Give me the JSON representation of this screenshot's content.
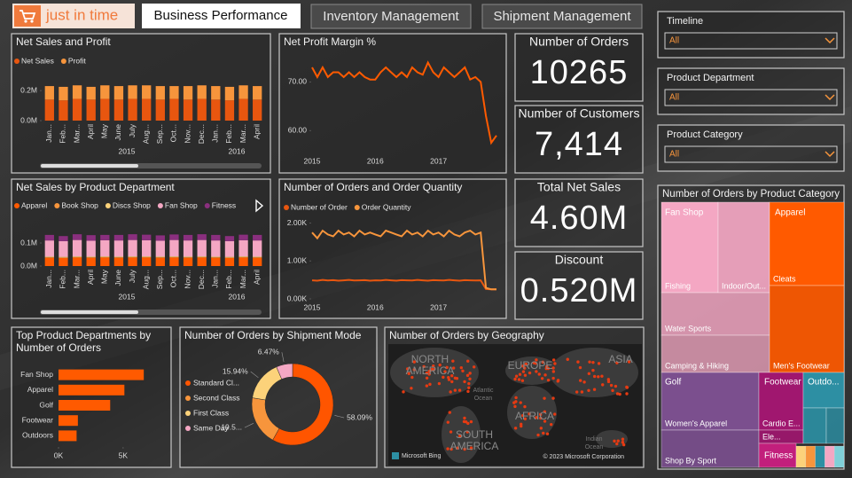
{
  "header": {
    "logo": "just in time",
    "tabs": [
      "Business Performance",
      "Inventory Management",
      "Shipment Management"
    ]
  },
  "filters": [
    {
      "title": "Timeline",
      "value": "All"
    },
    {
      "title": "Product Department",
      "value": "All"
    },
    {
      "title": "Product Category",
      "value": "All"
    }
  ],
  "cards": [
    {
      "title": "Number of Orders",
      "value": 10265
    },
    {
      "title": "Number of Customers",
      "value": 7414,
      "value_label": "7,414"
    },
    {
      "title": "Total Net Sales",
      "value": 4600000,
      "value_label": "4.60M"
    },
    {
      "title": "Discount",
      "value": 520000,
      "value_label": "0.520M"
    }
  ],
  "map": {
    "title": "Number of Orders by Geography",
    "labels": [
      "NORTH AMERICA",
      "EUROPE",
      "ASIA",
      "AFRICA",
      "SOUTH AMERICA"
    ],
    "minor_labels": [
      "Atlantic Ocean",
      "Indian Ocean"
    ],
    "logo": "Microsoft Bing",
    "copyright": "© 2023 Microsoft Corporation"
  },
  "chart_data": [
    {
      "type": "stacked_bar",
      "title": "Net Sales and Profit",
      "categories": [
        "Jan...",
        "Feb...",
        "Mar...",
        "April",
        "May",
        "June",
        "July",
        "Aug...",
        "Sep...",
        "Oct...",
        "Nov...",
        "Dec...",
        "Jan...",
        "Feb...",
        "Mar...",
        "April"
      ],
      "year_labels": [
        "2015",
        "2016"
      ],
      "series": [
        {
          "name": "Net Sales",
          "color": "#e8560f",
          "values": [
            0.14,
            0.135,
            0.145,
            0.14,
            0.145,
            0.14,
            0.145,
            0.145,
            0.14,
            0.145,
            0.14,
            0.145,
            0.14,
            0.135,
            0.145,
            0.14
          ]
        },
        {
          "name": "Profit",
          "color": "#f7953c",
          "values": [
            0.09,
            0.09,
            0.09,
            0.085,
            0.09,
            0.09,
            0.09,
            0.09,
            0.09,
            0.085,
            0.09,
            0.09,
            0.09,
            0.09,
            0.09,
            0.09
          ]
        }
      ],
      "ylim": [
        0,
        0.26
      ],
      "yticks": [
        {
          "value": 0,
          "label": "0.0M"
        },
        {
          "value": 0.2,
          "label": "0.2M"
        }
      ]
    },
    {
      "type": "line",
      "title": "Net Profit Margin %",
      "categories": [
        "2015",
        null,
        null,
        null,
        null,
        null,
        null,
        null,
        null,
        null,
        null,
        null,
        "2016",
        null,
        null,
        null,
        null,
        null,
        null,
        null,
        null,
        null,
        null,
        null,
        "2017",
        null,
        null,
        null,
        null,
        null,
        null,
        null,
        null,
        null,
        null,
        null
      ],
      "series": [
        {
          "name": "Net Profit Margin %",
          "color": "#ff5a00",
          "values": [
            73,
            71,
            73,
            71,
            72,
            72,
            71,
            72,
            71,
            72,
            71,
            70.5,
            70.5,
            72,
            73,
            72,
            71,
            72,
            71,
            73,
            72,
            71.5,
            74,
            72,
            71,
            73,
            72,
            71,
            72,
            73,
            70.5,
            71,
            70,
            63,
            57.5,
            59
          ]
        }
      ],
      "ylim": [
        55.5,
        75
      ],
      "yticks": [
        {
          "value": 60,
          "label": "60.00"
        },
        {
          "value": 70,
          "label": "70.00"
        }
      ]
    },
    {
      "type": "stacked_bar",
      "title": "Net Sales by Product Department",
      "categories": [
        "Jan...",
        "Feb...",
        "Mar...",
        "April",
        "May",
        "June",
        "July",
        "Aug...",
        "Sep...",
        "Oct...",
        "Nov...",
        "Dec...",
        "Jan...",
        "Feb...",
        "Mar...",
        "April"
      ],
      "year_labels": [
        "2015",
        "2016"
      ],
      "series": [
        {
          "name": "Apparel",
          "color": "#ff5a00",
          "values": [
            0.036,
            0.035,
            0.037,
            0.036,
            0.037,
            0.036,
            0.037,
            0.037,
            0.036,
            0.037,
            0.036,
            0.037,
            0.036,
            0.035,
            0.037,
            0.036
          ]
        },
        {
          "name": "Book Shop",
          "color": "#f7953c",
          "values": [
            0.002,
            0.002,
            0.002,
            0.002,
            0.002,
            0.002,
            0.002,
            0.002,
            0.002,
            0.002,
            0.002,
            0.002,
            0.002,
            0.002,
            0.002,
            0.002
          ]
        },
        {
          "name": "Discs Shop",
          "color": "#fcd27a",
          "values": [
            0.003,
            0.003,
            0.003,
            0.003,
            0.003,
            0.003,
            0.003,
            0.003,
            0.003,
            0.003,
            0.003,
            0.003,
            0.003,
            0.003,
            0.003,
            0.003
          ]
        },
        {
          "name": "Fan Shop",
          "color": "#f4a7c3",
          "values": [
            0.07,
            0.068,
            0.071,
            0.069,
            0.07,
            0.07,
            0.071,
            0.07,
            0.069,
            0.071,
            0.07,
            0.071,
            0.07,
            0.068,
            0.07,
            0.07
          ]
        },
        {
          "name": "Fitness",
          "color": "#8a2f7e",
          "values": [
            0.024,
            0.022,
            0.025,
            0.024,
            0.023,
            0.024,
            0.025,
            0.024,
            0.023,
            0.024,
            0.024,
            0.025,
            0.024,
            0.022,
            0.024,
            0.024
          ]
        }
      ],
      "ylim": [
        0,
        0.15
      ],
      "yticks": [
        {
          "value": 0,
          "label": "0.0M"
        },
        {
          "value": 0.1,
          "label": "0.1M"
        }
      ]
    },
    {
      "type": "line",
      "title": "Number of Orders and Order Quantity",
      "categories": [
        "2015",
        null,
        null,
        null,
        null,
        null,
        null,
        null,
        null,
        null,
        null,
        null,
        "2016",
        null,
        null,
        null,
        null,
        null,
        null,
        null,
        null,
        null,
        null,
        null,
        "2017",
        null,
        null,
        null,
        null,
        null,
        null,
        null,
        null,
        null,
        null,
        null
      ],
      "series": [
        {
          "name": "Number of Order",
          "color": "#e8560f",
          "values": [
            490,
            480,
            500,
            485,
            495,
            480,
            490,
            500,
            485,
            490,
            495,
            480,
            490,
            485,
            500,
            490,
            480,
            495,
            490,
            485,
            500,
            490,
            480,
            495,
            490,
            485,
            500,
            490,
            480,
            495,
            490,
            485,
            490,
            260,
            250,
            250
          ]
        },
        {
          "name": "Order Quantity",
          "color": "#f7953c",
          "values": [
            1750,
            1600,
            1800,
            1700,
            1650,
            1800,
            1700,
            1750,
            1650,
            1800,
            1700,
            1750,
            1700,
            1650,
            1800,
            1750,
            1700,
            1650,
            1800,
            1700,
            1750,
            1650,
            1800,
            1700,
            1750,
            1650,
            1800,
            1700,
            1650,
            1750,
            1800,
            1700,
            1750,
            290,
            250,
            250
          ]
        }
      ],
      "ylim": [
        0,
        2200
      ],
      "yticks": [
        {
          "value": 0,
          "label": "0.00K"
        },
        {
          "value": 1000,
          "label": "1.00K"
        },
        {
          "value": 2000,
          "label": "2.00K"
        }
      ]
    },
    {
      "type": "hbar",
      "title": "Top Product Departments by Number of Orders",
      "categories": [
        "Fan Shop",
        "Apparel",
        "Golf",
        "Footwear",
        "Outdoors"
      ],
      "values": [
        6600,
        5100,
        4000,
        1500,
        1400
      ],
      "color": "#ff5a00",
      "xlim": [
        0,
        7000
      ],
      "xticks": [
        {
          "value": 0,
          "label": "0K"
        },
        {
          "value": 5000,
          "label": "5K"
        }
      ]
    },
    {
      "type": "donut",
      "title": "Number of Orders by Shipment Mode",
      "categories": [
        "Standard Cl...",
        "Second Class",
        "First Class",
        "Same Day"
      ],
      "values": [
        58.09,
        19.5,
        15.94,
        6.47
      ],
      "value_labels": [
        "58.09%",
        "19.5...",
        "15.94%",
        "6.47%"
      ],
      "colors": [
        "#ff5500",
        "#f7953c",
        "#fcd27a",
        "#f4a7c3"
      ]
    },
    {
      "type": "treemap",
      "title": "Number of Orders by Product Category",
      "groups": [
        {
          "name": "Fan Shop",
          "color": "#f4a7c3",
          "items": [
            {
              "label": "Fishing",
              "value": 1110
            },
            {
              "label": "Indoor/Out...",
              "value": 1000
            },
            {
              "label": "Water Sports",
              "value": 990
            },
            {
              "label": "Camping & Hiking",
              "value": 870
            }
          ]
        },
        {
          "name": "Apparel",
          "color": "#ff5a00",
          "items": [
            {
              "label": "Cleats",
              "value": 1350
            },
            {
              "label": "Men's Footwear",
              "value": 1400
            }
          ]
        },
        {
          "name": "Golf",
          "color": "#7b4f8e",
          "items": [
            {
              "label": "Women's Apparel",
              "value": 1210
            },
            {
              "label": "Shop By Sport",
              "value": 780
            }
          ]
        },
        {
          "name": "Footwear",
          "color": "#a0176f",
          "items": [
            {
              "label": "Cardio E...",
              "value": 550
            },
            {
              "label": "Ele...",
              "value": 130
            }
          ]
        },
        {
          "name": "Fitness",
          "color": "#c21f7c",
          "items": [
            {
              "label": null,
              "value": 190
            }
          ]
        },
        {
          "name": "Outdo...",
          "color": "#2d8fa3",
          "items": [
            {
              "label": null,
              "value": 310
            },
            {
              "label": null,
              "value": 180
            },
            {
              "label": null,
              "value": 130
            }
          ]
        }
      ]
    }
  ]
}
